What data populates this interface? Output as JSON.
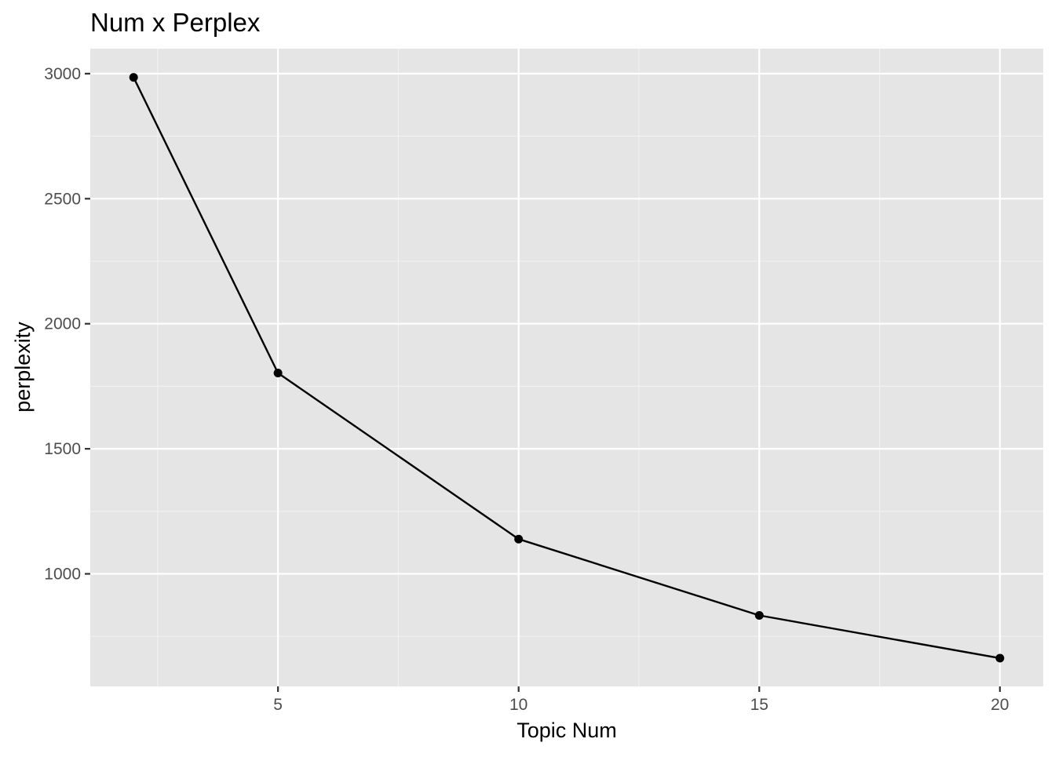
{
  "chart_data": {
    "type": "line",
    "title": "Num x Perplex",
    "xlabel": "Topic Num",
    "ylabel": "perplexity",
    "x": [
      2,
      5,
      10,
      15,
      20
    ],
    "series": [
      {
        "values": [
          2985,
          1803,
          1139,
          834,
          663
        ]
      }
    ],
    "xlim": [
      1.1,
      20.9
    ],
    "ylim": [
      550,
      3100
    ],
    "x_ticks": [
      5,
      10,
      15,
      20
    ],
    "x_minor_ticks": [
      2.5,
      7.5,
      12.5,
      17.5
    ],
    "y_ticks": [
      1000,
      1500,
      2000,
      2500,
      3000
    ],
    "y_minor_ticks": [
      750,
      1250,
      1750,
      2250,
      2750
    ],
    "x_tick_labels": [
      "5",
      "10",
      "15",
      "20"
    ],
    "y_tick_labels": [
      "1000",
      "1500",
      "2000",
      "2500",
      "3000"
    ],
    "grid": true,
    "legend": "none",
    "colors": {
      "panel_background": "#e5e5e5",
      "grid_major": "#ffffff",
      "grid_minor": "#f2f2f2",
      "line": "#000000",
      "point": "#000000",
      "tick_text": "#4d4d4d",
      "tick_mark": "#333333"
    }
  }
}
